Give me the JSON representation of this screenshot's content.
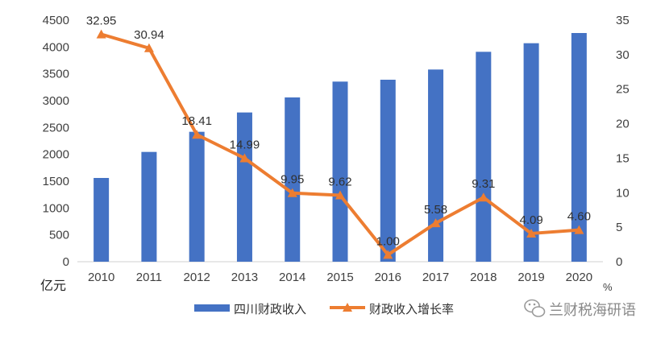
{
  "chart_data": {
    "type": "bar+line",
    "categories": [
      "2010",
      "2011",
      "2012",
      "2013",
      "2014",
      "2015",
      "2016",
      "2017",
      "2018",
      "2019",
      "2020"
    ],
    "series": [
      {
        "name": "四川财政收入",
        "type": "bar",
        "axis": "left",
        "values": [
          1560,
          2045,
          2420,
          2780,
          3060,
          3355,
          3390,
          3580,
          3910,
          4070,
          4260
        ],
        "color": "#4472C4"
      },
      {
        "name": "财政收入增长率",
        "type": "line",
        "axis": "right",
        "values": [
          32.95,
          30.94,
          18.41,
          14.99,
          9.95,
          9.62,
          1.0,
          5.58,
          9.31,
          4.09,
          4.6
        ],
        "labels": [
          "32.95",
          "30.94",
          "18.41",
          "14.99",
          "9.95",
          "9.62",
          "1.00",
          "5.58",
          "9.31",
          "4.09",
          "4.60"
        ],
        "color": "#ED7D31"
      }
    ],
    "y_left": {
      "unit": "亿元",
      "ylim": [
        0,
        4500
      ],
      "ticks": [
        "0",
        "500",
        "1000",
        "1500",
        "2000",
        "2500",
        "3000",
        "3500",
        "4000",
        "4500"
      ]
    },
    "y_right": {
      "unit": "%",
      "ylim": [
        0,
        35
      ],
      "ticks": [
        "0",
        "5",
        "10",
        "15",
        "20",
        "25",
        "30",
        "35"
      ]
    },
    "grid": false,
    "legend": "bottom"
  },
  "watermark": {
    "text": "兰财税海研语",
    "icon": "wechat-icon"
  }
}
